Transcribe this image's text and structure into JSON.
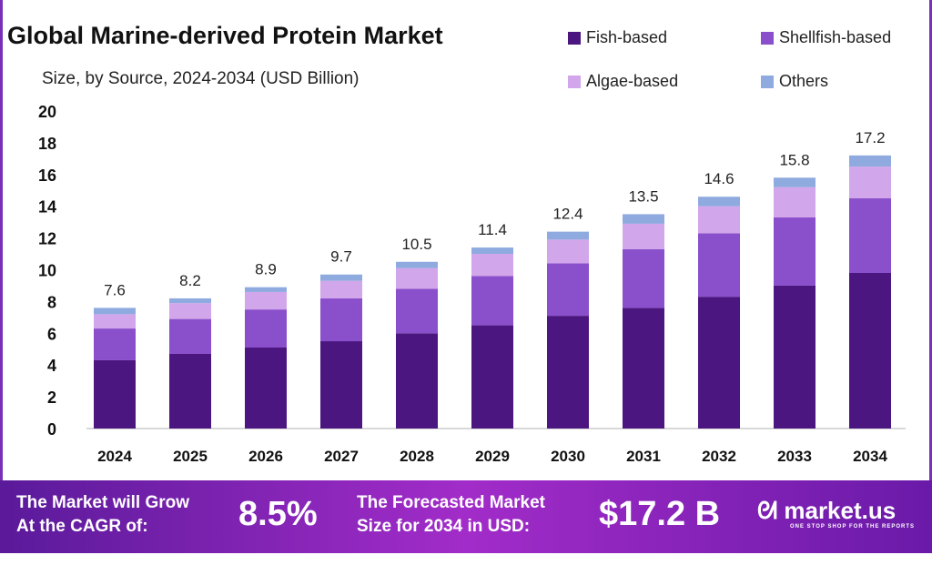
{
  "chart_data": {
    "type": "bar",
    "stacked": true,
    "title": "Global Marine-derived Protein Market",
    "subtitle": "Size, by Source, 2024-2034 (USD Billion)",
    "categories": [
      "2024",
      "2025",
      "2026",
      "2027",
      "2028",
      "2029",
      "2030",
      "2031",
      "2032",
      "2033",
      "2034"
    ],
    "ylim": [
      0,
      20
    ],
    "yticks": [
      0,
      2,
      4,
      6,
      8,
      10,
      12,
      14,
      16,
      18,
      20
    ],
    "grid": false,
    "legend_position": "top-right",
    "series": [
      {
        "name": "Fish-based",
        "color": "#4b1680",
        "values": [
          4.3,
          4.7,
          5.1,
          5.5,
          6.0,
          6.5,
          7.1,
          7.6,
          8.3,
          9.0,
          9.8
        ]
      },
      {
        "name": "Shellfish-based",
        "color": "#8a4fcb",
        "values": [
          2.0,
          2.2,
          2.4,
          2.7,
          2.8,
          3.1,
          3.3,
          3.7,
          4.0,
          4.3,
          4.7
        ]
      },
      {
        "name": "Algae-based",
        "color": "#d2a6ea",
        "values": [
          0.9,
          1.0,
          1.1,
          1.1,
          1.3,
          1.4,
          1.5,
          1.6,
          1.7,
          1.9,
          2.0
        ]
      },
      {
        "name": "Others",
        "color": "#8eaadf",
        "values": [
          0.4,
          0.3,
          0.3,
          0.4,
          0.4,
          0.4,
          0.5,
          0.6,
          0.6,
          0.6,
          0.7
        ]
      }
    ],
    "totals": [
      "7.6",
      "8.2",
      "8.9",
      "9.7",
      "10.5",
      "11.4",
      "12.4",
      "13.5",
      "14.6",
      "15.8",
      "17.2"
    ]
  },
  "banner": {
    "cagr_label_1": "The Market will Grow",
    "cagr_label_2": "At the CAGR of:",
    "cagr_value": "8.5%",
    "forecast_label_1": "The Forecasted Market",
    "forecast_label_2": "Size for 2034 in USD:",
    "forecast_value": "$17.2 B",
    "logo_text": "market.us",
    "logo_tagline": "ONE STOP SHOP FOR THE REPORTS"
  }
}
